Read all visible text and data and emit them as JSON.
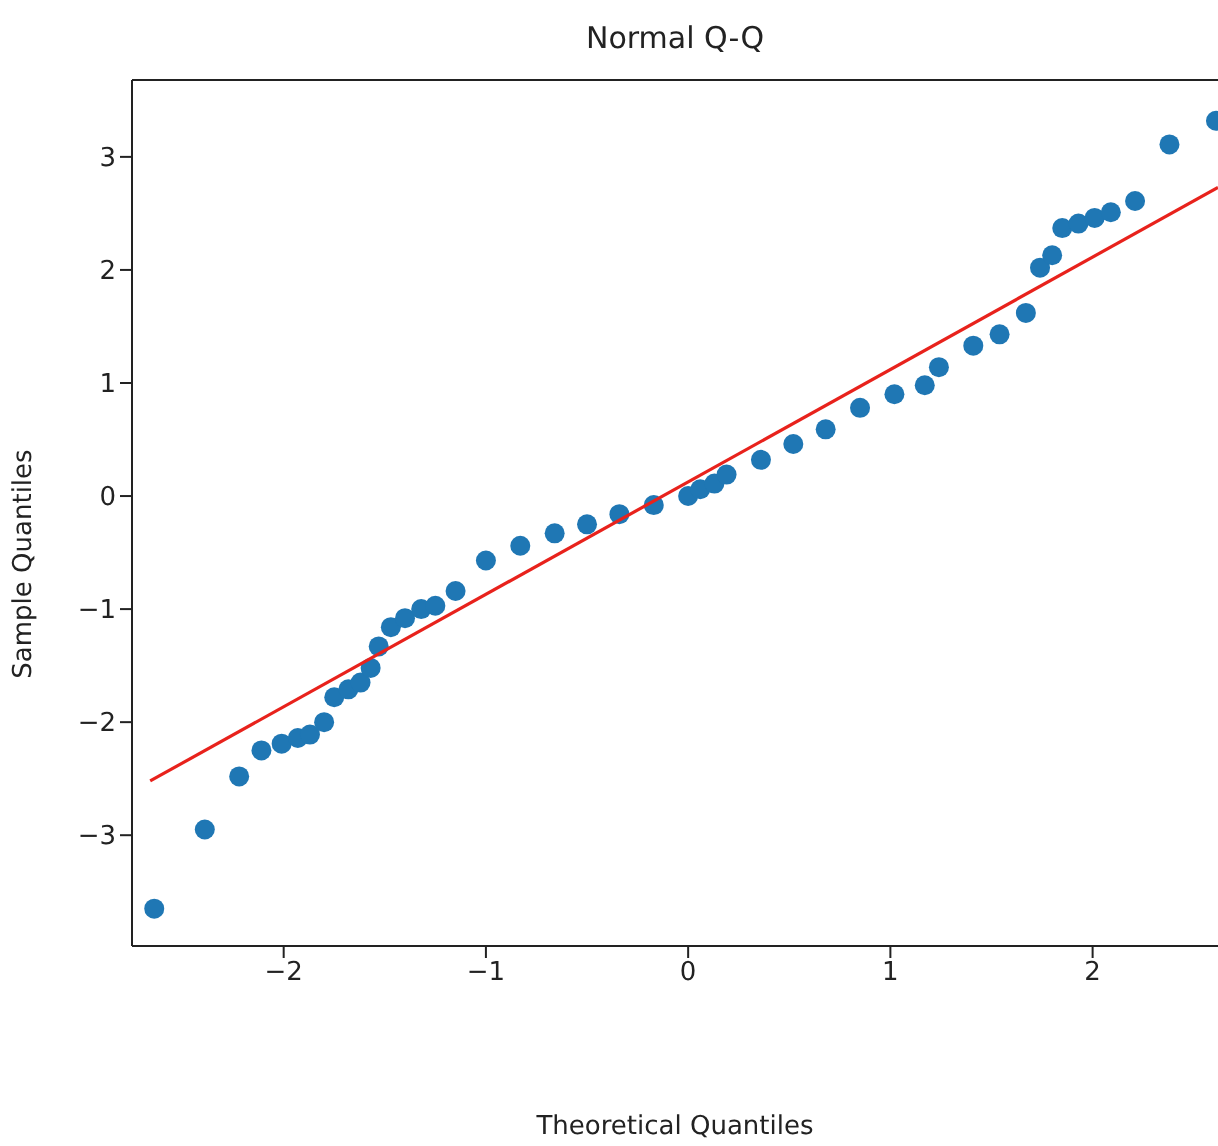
{
  "chart_data": {
    "type": "scatter",
    "title": "Normal Q-Q",
    "xlabel": "Theoretical Quantiles",
    "ylabel": "Sample Quantiles",
    "marker": "circle",
    "xlim": [
      -2.75,
      2.62
    ],
    "ylim": [
      -3.98,
      3.68
    ],
    "xticks": [
      {
        "value": -2,
        "label": "−2"
      },
      {
        "value": -1,
        "label": "−1"
      },
      0,
      1,
      2
    ],
    "yticks": [
      {
        "value": -3,
        "label": "−3"
      },
      {
        "value": -2,
        "label": "−2"
      },
      {
        "value": -1,
        "label": "−1"
      },
      0,
      1,
      2,
      3
    ],
    "series": [
      {
        "color": "#1f77b4",
        "x": [
          -2.64,
          -2.39,
          -2.22,
          -2.11,
          -2.01,
          -1.93,
          -1.87,
          -1.8,
          -1.75,
          -1.68,
          -1.62,
          -1.57,
          -1.53,
          -1.47,
          -1.4,
          -1.32,
          -1.25,
          -1.15,
          -1.0,
          -0.83,
          -0.66,
          -0.5,
          -0.34,
          -0.17,
          0,
          0.06,
          0.13,
          0.19,
          0.36,
          0.52,
          0.68,
          0.85,
          1.02,
          1.17,
          1.24,
          1.41,
          1.54,
          1.67,
          1.74,
          1.8,
          1.85,
          1.93,
          2.01,
          2.09,
          2.21,
          2.38,
          2.61
        ],
        "values": [
          -3.65,
          -2.95,
          -2.48,
          -2.25,
          -2.19,
          -2.14,
          -2.11,
          -2.0,
          -1.78,
          -1.71,
          -1.65,
          -1.52,
          -1.33,
          -1.16,
          -1.08,
          -1.0,
          -0.97,
          -0.84,
          -0.57,
          -0.44,
          -0.33,
          -0.25,
          -0.16,
          -0.08,
          0,
          0.06,
          0.11,
          0.19,
          0.32,
          0.46,
          0.59,
          0.78,
          0.9,
          0.98,
          1.14,
          1.33,
          1.43,
          1.62,
          2.02,
          2.13,
          2.37,
          2.41,
          2.46,
          2.51,
          2.61,
          3.11,
          3.32
        ]
      },
      {
        "type": "line",
        "marker": "none",
        "color": "#e8221c",
        "line_style": "solid",
        "x": [
          -2.66,
          2.62
        ],
        "values": [
          -2.52,
          2.73
        ]
      }
    ]
  }
}
